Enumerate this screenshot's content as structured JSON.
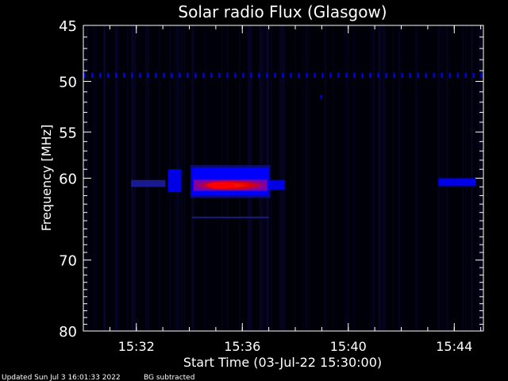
{
  "chart_data": {
    "type": "heatmap",
    "title": "Solar radio Flux (Glasgow)",
    "xlabel": "Start Time (03-Jul-22 15:30:00)",
    "ylabel": "Frequency [MHz]",
    "x_range_minutes": [
      0,
      15.1
    ],
    "x_ticks": [
      {
        "label": "15:32",
        "minute": 2
      },
      {
        "label": "15:36",
        "minute": 6
      },
      {
        "label": "15:40",
        "minute": 10
      },
      {
        "label": "15:44",
        "minute": 14
      }
    ],
    "ylim": [
      80,
      45
    ],
    "y_ticks": [
      45,
      50,
      55,
      60,
      70,
      80
    ],
    "y_scale": "log",
    "grid": false,
    "colors": {
      "background": "#000000",
      "low": "#000033",
      "medium": "#0000ff",
      "high": "#ff0000"
    },
    "features": [
      {
        "name": "emission",
        "t_start": 4.1,
        "t_end": 7.0,
        "f_low": 58.8,
        "f_high": 62.0,
        "peak_f": 60.8,
        "peak_t": 5.2,
        "intensity": "high"
      },
      {
        "name": "line",
        "t_start": 0.0,
        "t_end": 15.1,
        "f_low": 49.2,
        "f_high": 49.6,
        "intensity": "medium"
      },
      {
        "name": "patch",
        "t_start": 3.2,
        "t_end": 3.7,
        "f_low": 59.0,
        "f_high": 61.6,
        "intensity": "medium"
      },
      {
        "name": "patch",
        "t_start": 7.0,
        "t_end": 7.6,
        "f_low": 60.2,
        "f_high": 61.3,
        "intensity": "medium"
      },
      {
        "name": "patch",
        "t_start": 13.4,
        "t_end": 14.8,
        "f_low": 60.0,
        "f_high": 60.9,
        "intensity": "medium"
      },
      {
        "name": "patch",
        "t_start": 1.8,
        "t_end": 3.1,
        "f_low": 60.2,
        "f_high": 61.0,
        "intensity": "low"
      }
    ]
  },
  "footer": {
    "updated": "Updated Sun Jul  3 16:01:33 2022",
    "note": "BG subtracted"
  }
}
